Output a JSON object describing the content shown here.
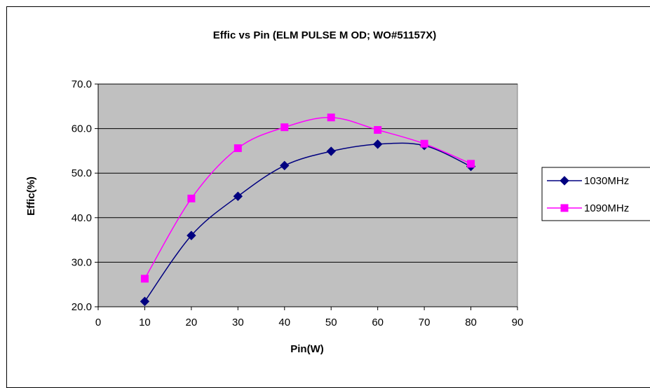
{
  "chart_data": {
    "type": "line",
    "title": "Effic vs Pin (ELM PULSE M OD; WO#51157X)",
    "xlabel": "Pin(W)",
    "ylabel": "Effic(%)",
    "xlim": [
      0,
      90
    ],
    "ylim": [
      20,
      70
    ],
    "x_ticks": [
      "0",
      "10",
      "20",
      "30",
      "40",
      "50",
      "60",
      "70",
      "80",
      "90"
    ],
    "y_ticks": [
      "20.0",
      "30.0",
      "40.0",
      "50.0",
      "60.0",
      "70.0"
    ],
    "grid": "horizontal",
    "legend_position": "right",
    "plot_background": "#c0c0c0",
    "series": [
      {
        "name": "1030MHz",
        "color": "#000080",
        "marker": "diamond",
        "x": [
          10,
          20,
          30,
          40,
          50,
          60,
          70,
          80
        ],
        "y": [
          21.2,
          36.0,
          44.8,
          51.7,
          54.9,
          56.5,
          56.2,
          51.5
        ]
      },
      {
        "name": "1090MHz",
        "color": "#ff00ff",
        "marker": "square",
        "x": [
          10,
          20,
          30,
          40,
          50,
          60,
          70,
          80
        ],
        "y": [
          26.3,
          44.3,
          55.6,
          60.3,
          62.5,
          59.7,
          56.6,
          52.1
        ]
      }
    ]
  }
}
